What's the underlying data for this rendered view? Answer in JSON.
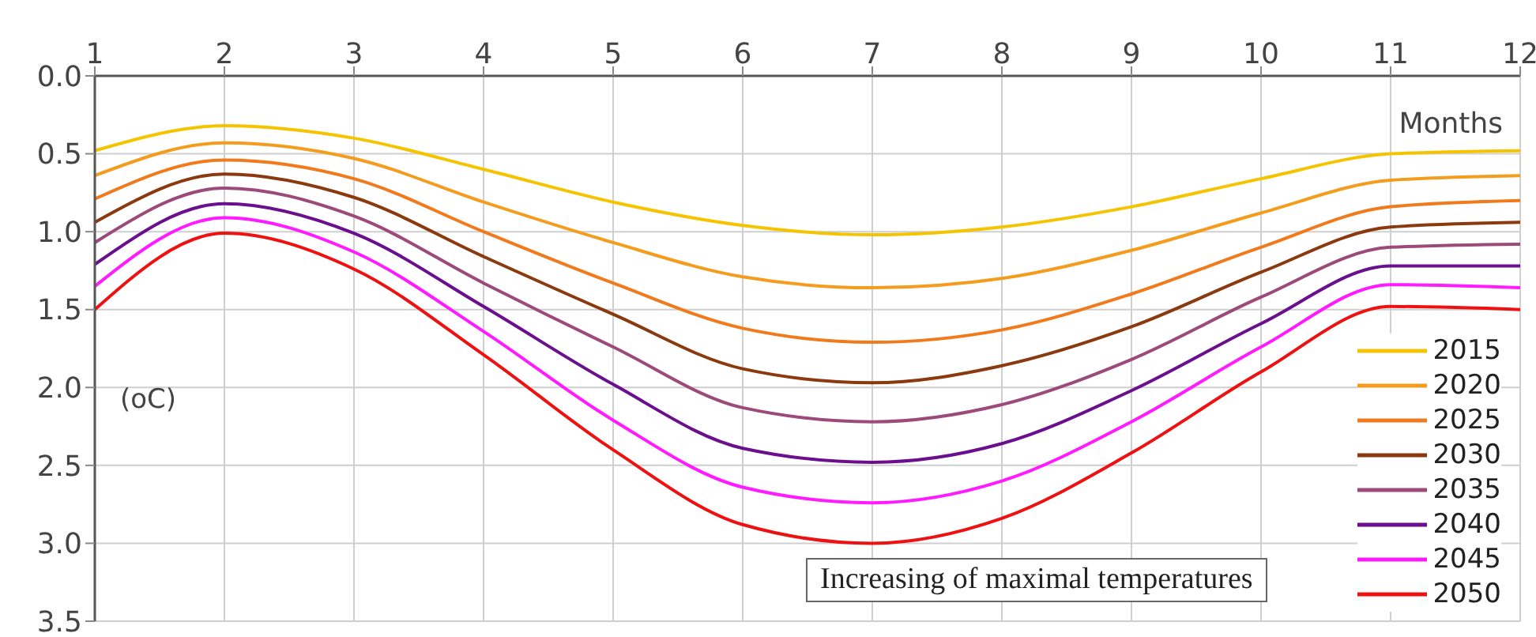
{
  "chart_data": {
    "type": "line",
    "title": "Increasing of maximal temperatures",
    "xlabel": "Months",
    "annotations": [
      "(oC)"
    ],
    "x": [
      1,
      2,
      3,
      4,
      5,
      6,
      7,
      8,
      9,
      10,
      11,
      12
    ],
    "xlim": [
      1,
      12
    ],
    "xticks": [
      1,
      2,
      3,
      4,
      5,
      6,
      7,
      8,
      9,
      10,
      11,
      12
    ],
    "ylim": [
      3.5,
      0
    ],
    "yticks": [
      {
        "value": 0,
        "label": "0.0"
      },
      0.5,
      {
        "value": 1,
        "label": "1.0"
      },
      1.5,
      {
        "value": 2,
        "label": "2.0"
      },
      2.5,
      {
        "value": 3,
        "label": "3.0"
      },
      3.5
    ],
    "grid": true,
    "legend": "bottom right",
    "marker": "none",
    "line_style": "solid",
    "series": [
      {
        "name": "2015",
        "color": "#f5c400",
        "values": [
          0.48,
          0.32,
          0.4,
          0.6,
          0.81,
          0.96,
          1.02,
          0.97,
          0.84,
          0.66,
          0.5,
          0.48
        ]
      },
      {
        "name": "2020",
        "color": "#f39c1e",
        "values": [
          0.64,
          0.43,
          0.53,
          0.81,
          1.07,
          1.29,
          1.36,
          1.3,
          1.12,
          0.88,
          0.67,
          0.64
        ]
      },
      {
        "name": "2025",
        "color": "#f07a1c",
        "values": [
          0.79,
          0.54,
          0.66,
          1.0,
          1.33,
          1.62,
          1.71,
          1.63,
          1.4,
          1.1,
          0.84,
          0.8
        ]
      },
      {
        "name": "2030",
        "color": "#8b3a0f",
        "values": [
          0.94,
          0.63,
          0.78,
          1.16,
          1.53,
          1.88,
          1.97,
          1.86,
          1.61,
          1.26,
          0.97,
          0.94
        ]
      },
      {
        "name": "2035",
        "color": "#9c4a7a",
        "values": [
          1.07,
          0.72,
          0.9,
          1.33,
          1.74,
          2.13,
          2.22,
          2.11,
          1.82,
          1.42,
          1.1,
          1.08
        ]
      },
      {
        "name": "2040",
        "color": "#6a0f8e",
        "values": [
          1.21,
          0.82,
          1.01,
          1.48,
          1.98,
          2.39,
          2.48,
          2.36,
          2.02,
          1.59,
          1.22,
          1.22
        ]
      },
      {
        "name": "2045",
        "color": "#ff1aff",
        "values": [
          1.35,
          0.91,
          1.13,
          1.64,
          2.21,
          2.64,
          2.74,
          2.6,
          2.22,
          1.74,
          1.34,
          1.36
        ]
      },
      {
        "name": "2050",
        "color": "#ee1111",
        "values": [
          1.5,
          1.01,
          1.24,
          1.79,
          2.4,
          2.88,
          3.0,
          2.84,
          2.42,
          1.9,
          1.48,
          1.5
        ]
      }
    ]
  }
}
